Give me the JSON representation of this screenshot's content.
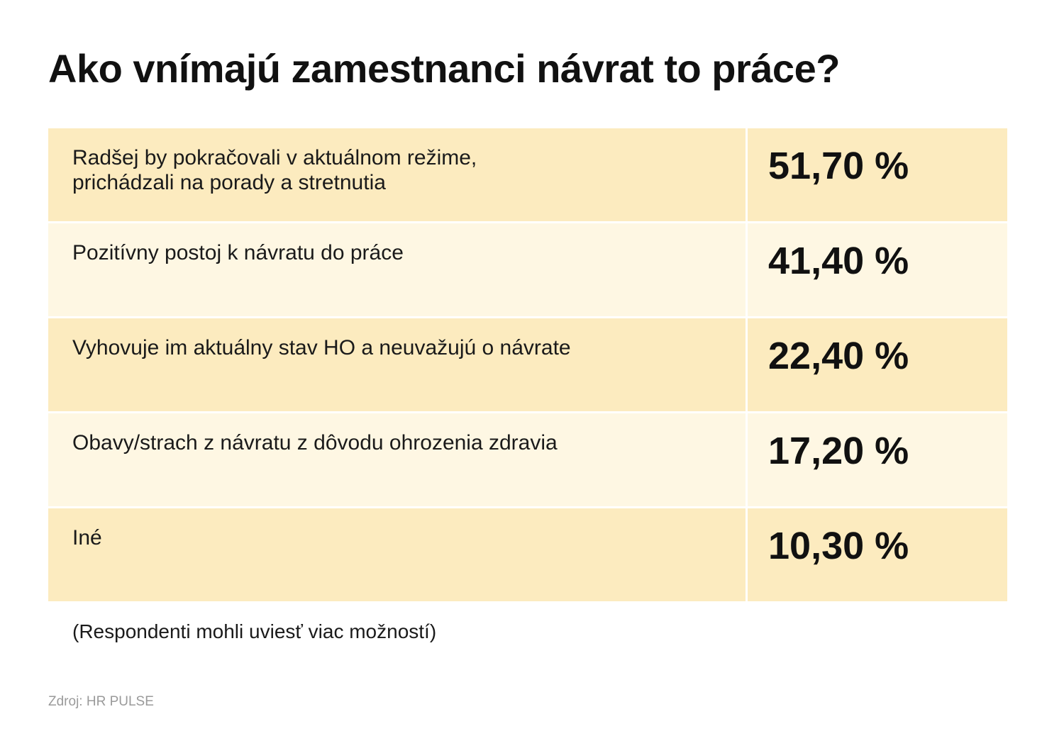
{
  "chart_data": {
    "type": "table",
    "title": "Ako vnímajú zamestnanci návrat to práce?",
    "rows": [
      {
        "label": "Radšej by pokračovali v aktuálnom režime,\nprichádzali na porady a stretnutia",
        "value": 51.7,
        "value_text": "51,70 %"
      },
      {
        "label": "Pozitívny postoj k návratu do práce",
        "value": 41.4,
        "value_text": "41,40 %"
      },
      {
        "label": "Vyhovuje im aktuálny stav HO a neuvažujú o návrate",
        "value": 22.4,
        "value_text": "22,40 %"
      },
      {
        "label": "Obavy/strach z návratu z dôvodu ohrozenia zdravia",
        "value": 17.2,
        "value_text": "17,20 %"
      },
      {
        "label": "Iné",
        "value": 10.3,
        "value_text": "10,30 %"
      }
    ],
    "note": "(Respondenti mohli uviesť viac možností)",
    "source": "Zdroj: HR PULSE"
  },
  "colors": {
    "row_shade_dark": "#fcebbf",
    "row_shade_light": "#fef7e3",
    "source_text": "#9a9a9a"
  }
}
